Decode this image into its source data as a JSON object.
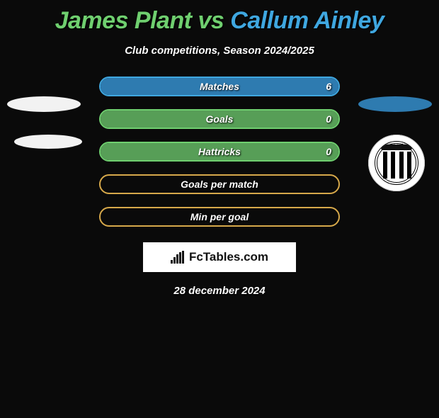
{
  "title": {
    "player1": "James Plant",
    "vs": "vs",
    "player2": "Callum Ainley"
  },
  "subtitle": "Club competitions, Season 2024/2025",
  "colors": {
    "player1": "#6fcf6f",
    "player1_fill": "#579e57",
    "player2": "#3fa7e0",
    "player2_fill": "#2e7bb0",
    "neutral_border": "#d6a84a",
    "background": "#0a0a0a"
  },
  "rows": [
    {
      "label": "Matches",
      "left": null,
      "right": "6",
      "fill_side": "right",
      "fill_pct": 100,
      "border": "rb"
    },
    {
      "label": "Goals",
      "left": null,
      "right": "0",
      "fill_side": "left",
      "fill_pct": 100,
      "border": "lg"
    },
    {
      "label": "Hattricks",
      "left": null,
      "right": "0",
      "fill_side": "left",
      "fill_pct": 100,
      "border": "lg"
    },
    {
      "label": "Goals per match",
      "left": null,
      "right": null,
      "fill_side": null,
      "fill_pct": 0,
      "border": "nn"
    },
    {
      "label": "Min per goal",
      "left": null,
      "right": null,
      "fill_side": null,
      "fill_pct": 0,
      "border": "nn"
    }
  ],
  "brand": "FcTables.com",
  "date": "28 december 2024",
  "crest_name": "Grimsby Town FC"
}
